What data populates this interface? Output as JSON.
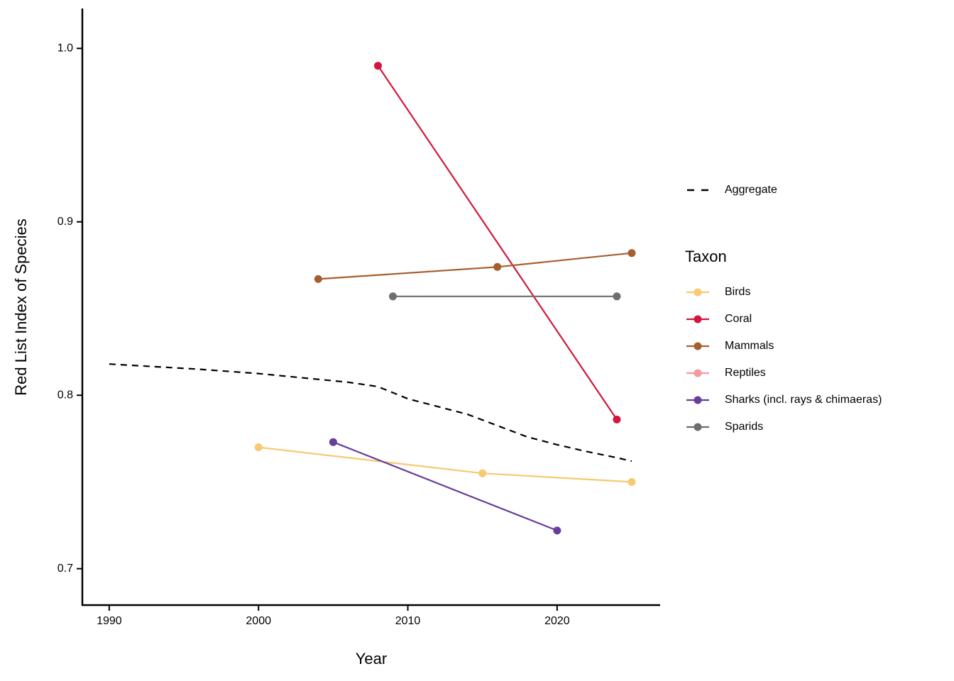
{
  "chart_data": {
    "type": "line",
    "title": "",
    "xlabel": "Year",
    "ylabel": "Red List Index of Species",
    "xlim": [
      1988.2,
      2026.9
    ],
    "ylim": [
      0.679,
      1.023
    ],
    "grid": false,
    "x_ticks": [
      1990,
      2000,
      2010,
      2020
    ],
    "x_tick_labels": [
      "1990",
      "2000",
      "2010",
      "2020"
    ],
    "y_ticks": [
      0.7,
      0.8,
      0.9,
      1.0
    ],
    "y_tick_labels": [
      "0.7",
      "0.8",
      "0.9",
      "1.0"
    ],
    "legend": {
      "position": "right",
      "aggregate_label": "Aggregate",
      "taxon_title": "Taxon"
    },
    "aggregate": {
      "name": "Aggregate",
      "style": "dashed",
      "color": "#000000",
      "points": [
        [
          1990,
          0.818
        ],
        [
          1993,
          0.8165
        ],
        [
          1996,
          0.815
        ],
        [
          2000,
          0.8125
        ],
        [
          2003,
          0.81
        ],
        [
          2006,
          0.8075
        ],
        [
          2008,
          0.805
        ],
        [
          2010,
          0.798
        ],
        [
          2012,
          0.7935
        ],
        [
          2014,
          0.789
        ],
        [
          2016,
          0.7825
        ],
        [
          2018,
          0.776
        ],
        [
          2020,
          0.7715
        ],
        [
          2022,
          0.7675
        ],
        [
          2024,
          0.764
        ],
        [
          2025,
          0.762
        ]
      ]
    },
    "series": [
      {
        "name": "Birds",
        "color": "#F7C970",
        "points": [
          [
            2000,
            0.77
          ],
          [
            2015,
            0.755
          ],
          [
            2025,
            0.75
          ]
        ]
      },
      {
        "name": "Coral",
        "color": "#D3163C",
        "points": [
          [
            2008,
            0.99
          ],
          [
            2024,
            0.786
          ]
        ]
      },
      {
        "name": "Mammals",
        "color": "#A65E2E",
        "points": [
          [
            2004,
            0.867
          ],
          [
            2016,
            0.874
          ],
          [
            2025,
            0.882
          ]
        ]
      },
      {
        "name": "Reptiles",
        "color": "#F4999C",
        "points": []
      },
      {
        "name": "Sharks (incl. rays & chimaeras)",
        "color": "#683E9A",
        "points": [
          [
            2005,
            0.773
          ],
          [
            2020,
            0.722
          ]
        ]
      },
      {
        "name": "Sparids",
        "color": "#6E6E6E",
        "points": [
          [
            2009,
            0.857
          ],
          [
            2024,
            0.857
          ]
        ]
      }
    ]
  }
}
